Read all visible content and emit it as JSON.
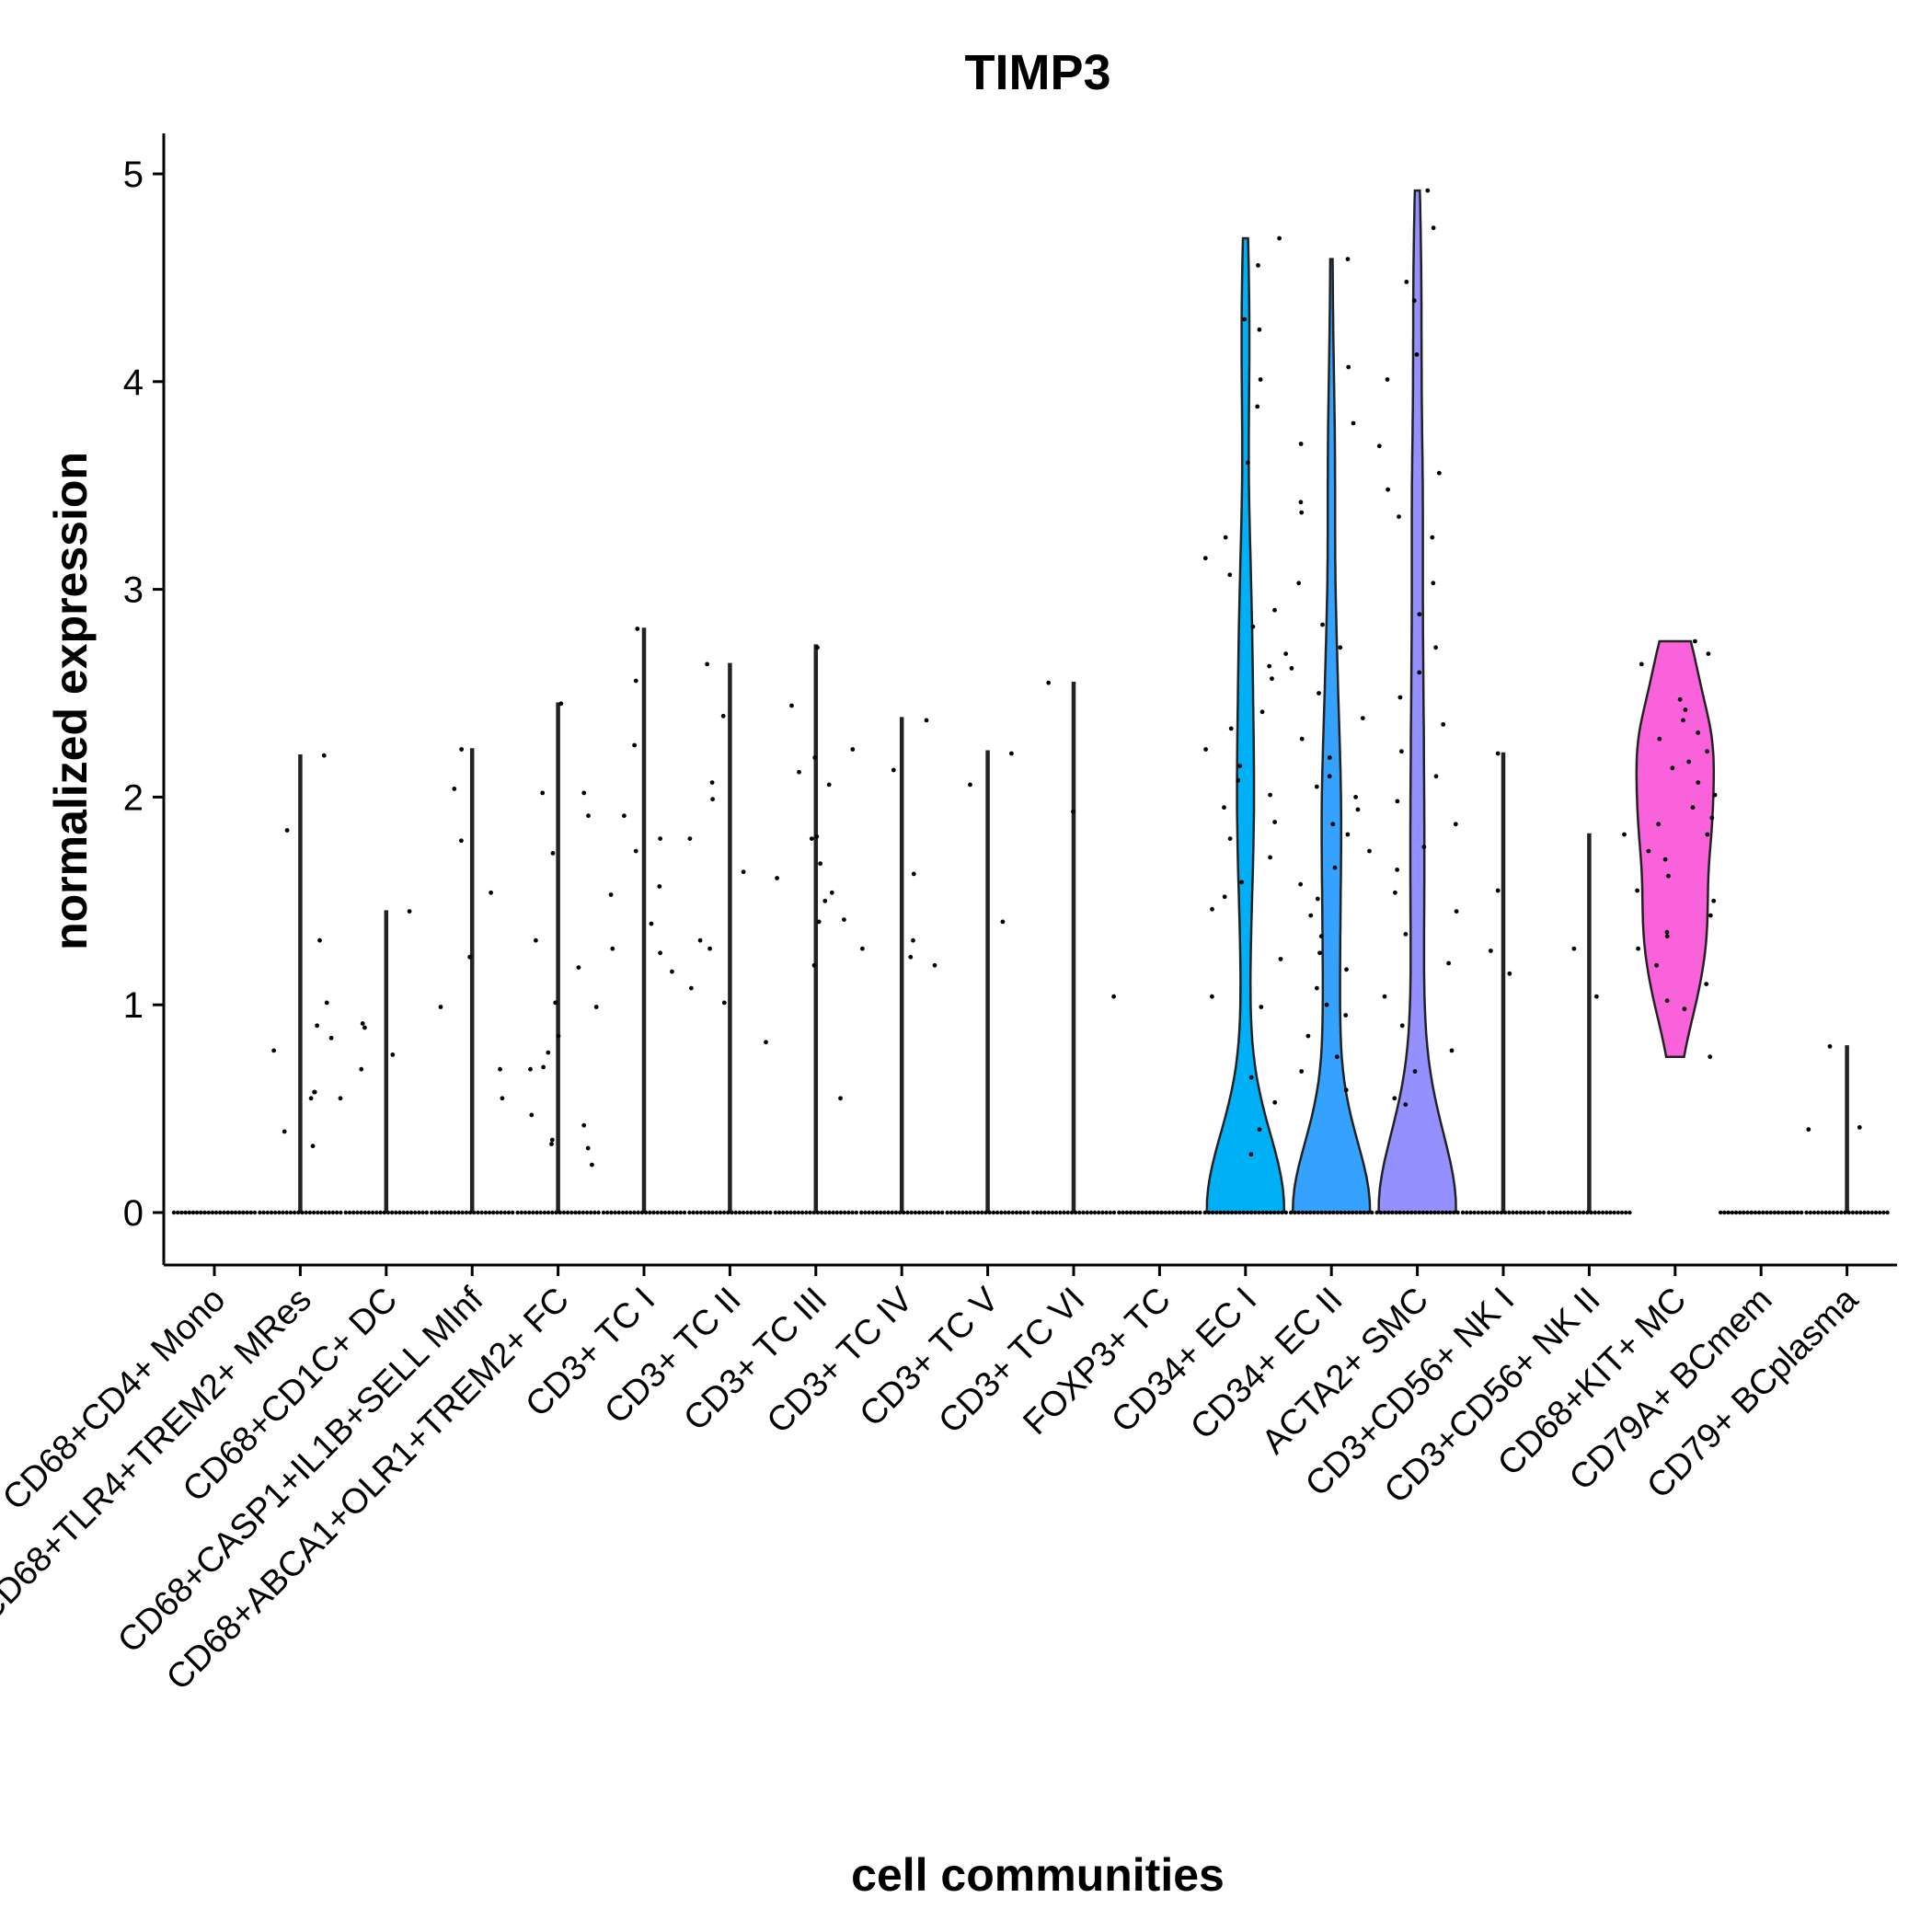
{
  "chart_data": {
    "type": "violin",
    "title": "TIMP3",
    "xlabel": "cell communities",
    "ylabel": "normalized expression",
    "ylim": [
      -0.25,
      5.2
    ],
    "yticks": [
      0,
      1,
      2,
      3,
      4,
      5
    ],
    "grid": false,
    "legend": "none",
    "categories": [
      "CD68+CD4+ Mono",
      "CD68+TLR4+TREM2+ MRes",
      "CD68+CD1C+ DC",
      "CD68+CASP1+IL1B+SELL MInf",
      "CD68+ABCA1+OLR1+TREM2+ FC",
      "CD3+ TC I",
      "CD3+ TC II",
      "CD3+ TC III",
      "CD3+ TC IV",
      "CD3+ TC V",
      "CD3+ TC VI",
      "FOXP3+ TC",
      "CD34+ EC I",
      "CD34+ EC II",
      "ACTA2+ SMC",
      "CD3+CD56+ NK I",
      "CD3+CD56+ NK II",
      "CD68+KIT+ MC",
      "CD79A+ BCmem",
      "CD79+ BCplasma"
    ],
    "colors": [
      "#F8766D",
      "#EA8331",
      "#D89000",
      "#C09B00",
      "#A3A500",
      "#7CAE00",
      "#39B600",
      "#00BB4E",
      "#00BF7D",
      "#00C1A3",
      "#00BFC4",
      "#00BAE0",
      "#00B0F6",
      "#35A2FF",
      "#9590FF",
      "#C77CFF",
      "#E76BF3",
      "#FA62DB",
      "#FF62BC",
      "#FF6C91"
    ],
    "max_values": [
      0,
      2.2,
      1.45,
      2.23,
      2.45,
      2.81,
      2.64,
      2.73,
      2.38,
      2.22,
      2.55,
      0,
      4.69,
      4.59,
      4.92,
      2.21,
      1.82,
      2.75,
      0,
      0.8
    ],
    "series": [
      {
        "name": "CD68+CD4+ Mono",
        "values": [
          0
        ]
      },
      {
        "name": "CD68+TLR4+TREM2+ MRes",
        "values": [
          0,
          0.32,
          0.39,
          0.55,
          0.55,
          0.58,
          0.58,
          0.78,
          0.84,
          0.9,
          1.01,
          1.31,
          1.84,
          2.2
        ]
      },
      {
        "name": "CD68+CD1C+ DC",
        "values": [
          0,
          0.69,
          0.76,
          0.89,
          0.91,
          1.45
        ]
      },
      {
        "name": "CD68+CASP1+IL1B+SELL MInf",
        "values": [
          0,
          0.55,
          0.69,
          0.99,
          1.23,
          1.54,
          1.79,
          2.04,
          2.23
        ]
      },
      {
        "name": "CD68+ABCA1+OLR1+TREM2+ FC",
        "values": [
          0,
          0.23,
          0.31,
          0.33,
          0.35,
          0.42,
          0.47,
          0.69,
          0.7,
          0.77,
          0.85,
          0.99,
          1.01,
          1.18,
          1.31,
          1.73,
          1.91,
          2.02,
          2.02,
          2.45
        ]
      },
      {
        "name": "CD3+ TC I",
        "values": [
          0,
          1.16,
          1.25,
          1.27,
          1.39,
          1.53,
          1.57,
          1.74,
          1.8,
          1.91,
          2.25,
          2.56,
          2.81
        ]
      },
      {
        "name": "CD3+ TC II",
        "values": [
          0,
          0.82,
          1.01,
          1.08,
          1.27,
          1.31,
          1.64,
          1.8,
          1.99,
          2.07,
          2.39,
          2.64
        ]
      },
      {
        "name": "CD3+ TC III",
        "values": [
          0,
          0.55,
          1.19,
          1.4,
          1.41,
          1.5,
          1.54,
          1.61,
          1.68,
          1.8,
          1.81,
          2.06,
          2.12,
          2.19,
          2.23,
          2.44,
          2.72
        ]
      },
      {
        "name": "CD3+ TC IV",
        "values": [
          0,
          1.19,
          1.23,
          1.27,
          1.31,
          1.63,
          2.13,
          2.37
        ]
      },
      {
        "name": "CD3+ TC V",
        "values": [
          0,
          1.4,
          2.06,
          2.21
        ]
      },
      {
        "name": "CD3+ TC VI",
        "values": [
          0,
          1.04,
          1.93,
          2.55
        ]
      },
      {
        "name": "FOXP3+ TC",
        "values": [
          0
        ]
      },
      {
        "name": "CD34+ EC I",
        "values": [
          0,
          0.28,
          0.4,
          0.53,
          0.65,
          0.99,
          1.04,
          1.22,
          1.46,
          1.52,
          1.59,
          1.71,
          1.8,
          1.88,
          1.95,
          2.01,
          2.08,
          2.15,
          2.23,
          2.33,
          2.41,
          2.57,
          2.63,
          2.69,
          2.82,
          2.9,
          3.07,
          3.15,
          3.25,
          3.61,
          3.88,
          4.01,
          4.25,
          4.3,
          4.56,
          4.69
        ]
      },
      {
        "name": "CD34+ EC II",
        "values": [
          0,
          0.59,
          0.68,
          0.75,
          0.85,
          0.95,
          1.0,
          1.08,
          1.17,
          1.25,
          1.33,
          1.43,
          1.51,
          1.58,
          1.66,
          1.74,
          1.82,
          1.87,
          1.94,
          2.0,
          2.05,
          2.1,
          2.19,
          2.28,
          2.38,
          2.5,
          2.62,
          2.72,
          2.83,
          3.03,
          3.37,
          3.42,
          3.7,
          3.8,
          4.07,
          4.59
        ]
      },
      {
        "name": "ACTA2+ SMC",
        "values": [
          0,
          0.52,
          0.55,
          0.68,
          0.78,
          0.9,
          1.04,
          1.2,
          1.34,
          1.45,
          1.54,
          1.65,
          1.76,
          1.87,
          1.98,
          2.1,
          2.22,
          2.35,
          2.48,
          2.6,
          2.72,
          2.88,
          3.03,
          3.25,
          3.35,
          3.48,
          3.56,
          3.69,
          4.01,
          4.13,
          4.39,
          4.48,
          4.74,
          4.92
        ]
      },
      {
        "name": "CD3+CD56+ NK I",
        "values": [
          0,
          1.15,
          1.26,
          1.55,
          2.21
        ]
      },
      {
        "name": "CD3+CD56+ NK II",
        "values": [
          0,
          1.04,
          1.27,
          1.82
        ]
      },
      {
        "name": "CD68+KIT+ MC",
        "values": [
          0.75,
          0.98,
          1.02,
          1.1,
          1.19,
          1.27,
          1.33,
          1.35,
          1.43,
          1.5,
          1.55,
          1.62,
          1.7,
          1.74,
          1.82,
          1.87,
          1.9,
          1.95,
          2.01,
          2.07,
          2.14,
          2.17,
          2.22,
          2.28,
          2.31,
          2.37,
          2.42,
          2.47,
          2.64,
          2.69,
          2.75
        ]
      },
      {
        "name": "CD79A+ BCmem",
        "values": [
          0
        ]
      },
      {
        "name": "CD79+ BCplasma",
        "values": [
          0,
          0.4,
          0.41,
          0.8
        ]
      }
    ]
  }
}
